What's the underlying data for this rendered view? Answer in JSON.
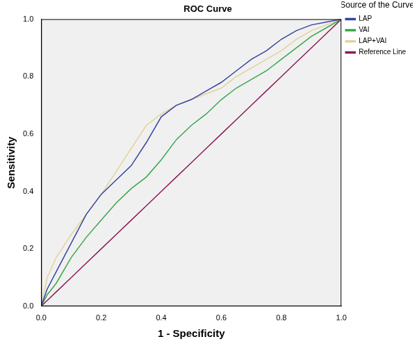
{
  "chart_data": {
    "type": "line",
    "title": "ROC Curve",
    "x_label": "1 - Specificity",
    "y_label": "Sensitivity",
    "legend_title": "Source of the Curve",
    "x": [
      0,
      0.02,
      0.05,
      0.1,
      0.15,
      0.2,
      0.25,
      0.3,
      0.35,
      0.4,
      0.45,
      0.5,
      0.55,
      0.6,
      0.65,
      0.7,
      0.75,
      0.8,
      0.85,
      0.9,
      0.95,
      1
    ],
    "series": [
      {
        "name": "LAP",
        "color": "#34449e",
        "line_style": "solid",
        "marker": "none",
        "values": [
          0,
          0.06,
          0.12,
          0.22,
          0.32,
          0.39,
          0.44,
          0.49,
          0.57,
          0.66,
          0.7,
          0.72,
          0.75,
          0.78,
          0.82,
          0.86,
          0.89,
          0.93,
          0.96,
          0.98,
          0.99,
          1
        ]
      },
      {
        "name": "VAI",
        "color": "#3aa64c",
        "line_style": "solid",
        "marker": "none",
        "values": [
          0,
          0.04,
          0.08,
          0.17,
          0.24,
          0.3,
          0.36,
          0.41,
          0.45,
          0.51,
          0.58,
          0.63,
          0.67,
          0.72,
          0.76,
          0.79,
          0.82,
          0.86,
          0.9,
          0.94,
          0.97,
          1
        ]
      },
      {
        "name": "LAP+VAI",
        "color": "#e2d29a",
        "line_style": "solid",
        "marker": "none",
        "values": [
          0,
          0.1,
          0.17,
          0.25,
          0.32,
          0.39,
          0.47,
          0.55,
          0.63,
          0.67,
          0.7,
          0.72,
          0.74,
          0.76,
          0.8,
          0.83,
          0.86,
          0.89,
          0.93,
          0.96,
          0.98,
          1
        ]
      },
      {
        "name": "Reference Line",
        "color": "#8b1a5c",
        "line_style": "solid",
        "marker": "none",
        "values": [
          0,
          0.02,
          0.05,
          0.1,
          0.15,
          0.2,
          0.25,
          0.3,
          0.35,
          0.4,
          0.45,
          0.5,
          0.55,
          0.6,
          0.65,
          0.7,
          0.75,
          0.8,
          0.85,
          0.9,
          0.95,
          1
        ]
      }
    ],
    "xlim": [
      0,
      1
    ],
    "ylim": [
      0,
      1
    ],
    "xticks": [
      {
        "value": 0,
        "label": "0.0"
      },
      0.2,
      0.4,
      0.6,
      0.8,
      {
        "value": 1,
        "label": "1.0"
      }
    ],
    "yticks": [
      {
        "value": 0,
        "label": "0.0"
      },
      0.2,
      0.4,
      0.6,
      0.8,
      {
        "value": 1,
        "label": "1.0"
      }
    ],
    "grid": false,
    "legend": "right"
  }
}
